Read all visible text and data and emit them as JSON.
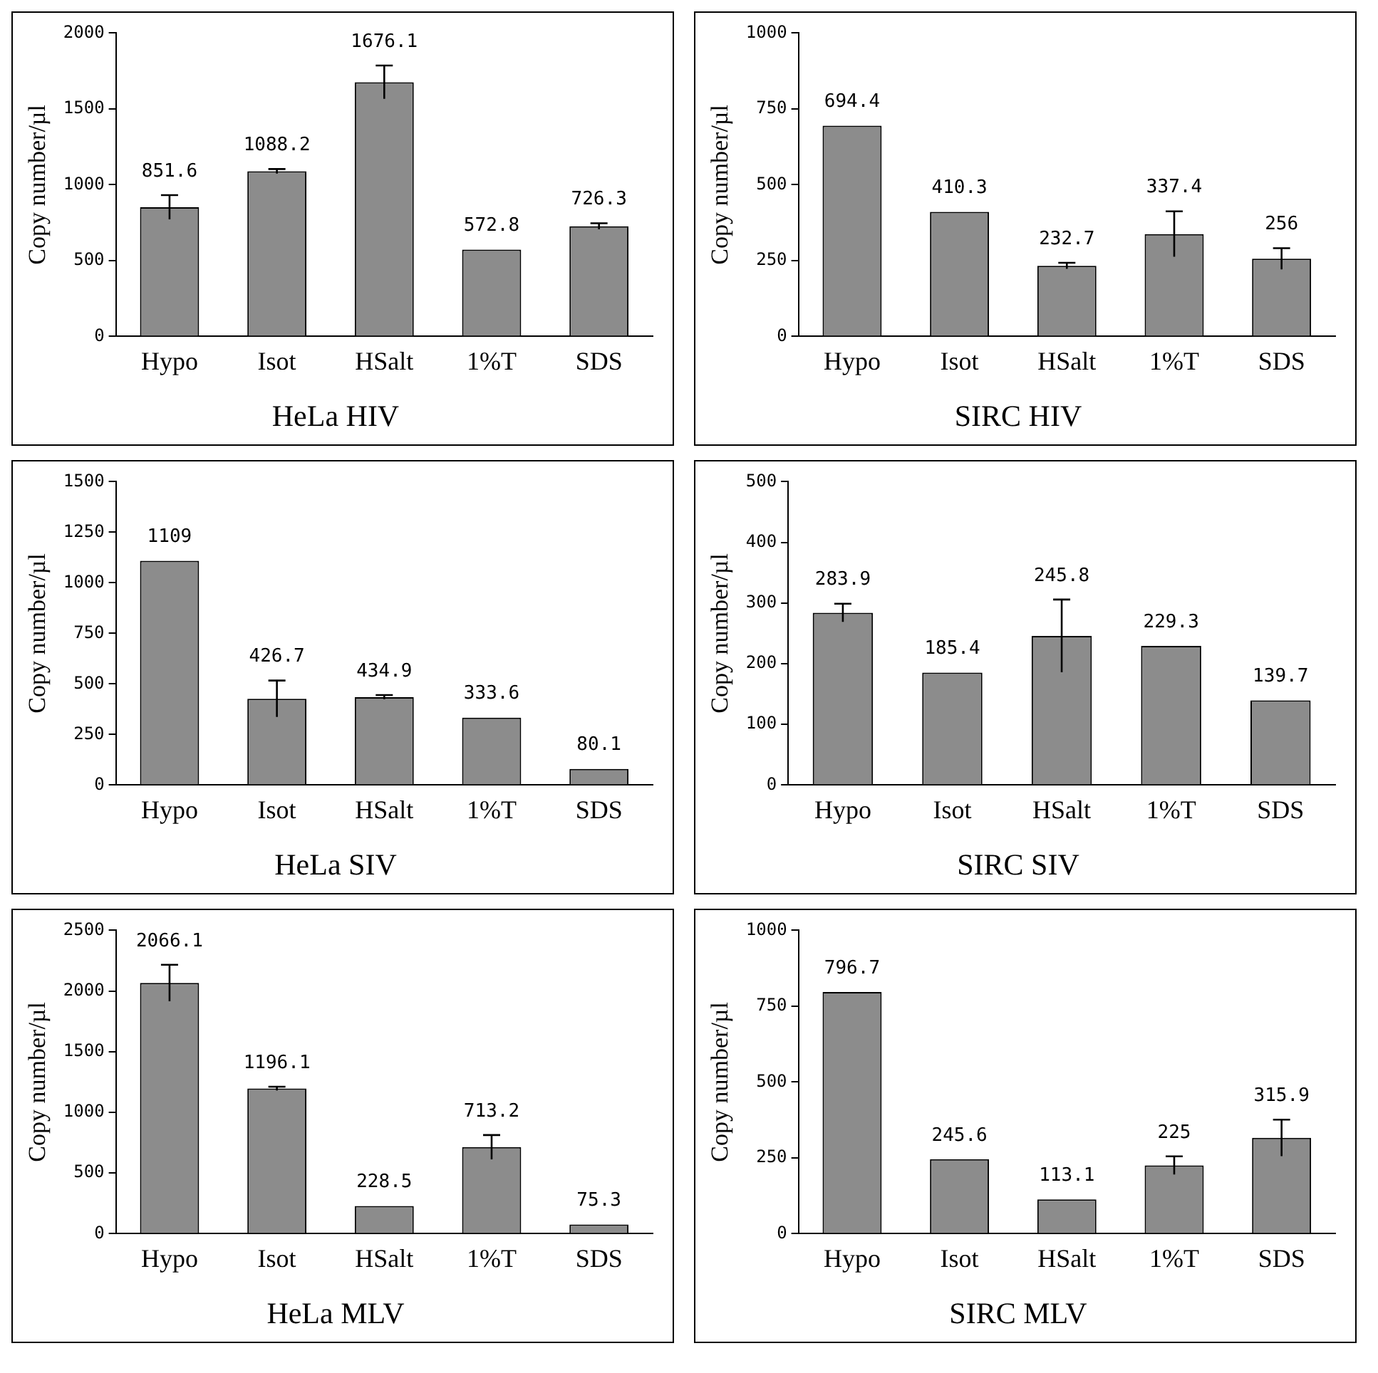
{
  "chart_data": [
    {
      "type": "bar",
      "title": "HeLa HIV",
      "ylabel": "Copy number/µl",
      "categories": [
        "Hypo",
        "Isot",
        "HSalt",
        "1%T",
        "SDS"
      ],
      "values": [
        851.6,
        1088.2,
        1676.1,
        572.8,
        726.3
      ],
      "errors": [
        80,
        15,
        110,
        null,
        20
      ],
      "color": "#8c8c8c",
      "ylim": [
        0,
        2000
      ],
      "yticks": [
        0,
        500,
        1000,
        1500,
        2000
      ],
      "data_labels": true
    },
    {
      "type": "bar",
      "title": "SIRC HIV",
      "ylabel": "Copy number/µl",
      "categories": [
        "Hypo",
        "Isot",
        "HSalt",
        "1%T",
        "SDS"
      ],
      "values": [
        694.4,
        410.3,
        232.7,
        337.4,
        256
      ],
      "errors": [
        null,
        null,
        10,
        75,
        35
      ],
      "color": "#8c8c8c",
      "ylim": [
        0,
        1000
      ],
      "yticks": [
        0,
        250,
        500,
        750,
        1000
      ],
      "data_labels": true
    },
    {
      "type": "bar",
      "title": "HeLa SIV",
      "ylabel": "Copy number/µl",
      "categories": [
        "Hypo",
        "Isot",
        "HSalt",
        "1%T",
        "SDS"
      ],
      "values": [
        1109,
        426.7,
        434.9,
        333.6,
        80.1
      ],
      "errors": [
        null,
        90,
        10,
        null,
        null
      ],
      "color": "#8c8c8c",
      "ylim": [
        0,
        1500
      ],
      "yticks": [
        0,
        250,
        500,
        750,
        1000,
        1250,
        1500
      ],
      "data_labels": true
    },
    {
      "type": "bar",
      "title": "SIRC SIV",
      "ylabel": "Copy number/µl",
      "categories": [
        "Hypo",
        "Isot",
        "HSalt",
        "1%T",
        "SDS"
      ],
      "values": [
        283.9,
        185.4,
        245.8,
        229.3,
        139.7
      ],
      "errors": [
        15,
        null,
        60,
        null,
        null
      ],
      "color": "#8c8c8c",
      "ylim": [
        0,
        500
      ],
      "yticks": [
        0,
        100,
        200,
        300,
        400,
        500
      ],
      "data_labels": true
    },
    {
      "type": "bar",
      "title": "HeLa MLV",
      "ylabel": "Copy number/µl",
      "categories": [
        "Hypo",
        "Isot",
        "HSalt",
        "1%T",
        "SDS"
      ],
      "values": [
        2066.1,
        1196.1,
        228.5,
        713.2,
        75.3
      ],
      "errors": [
        150,
        15,
        null,
        100,
        null
      ],
      "color": "#8c8c8c",
      "ylim": [
        0,
        2500
      ],
      "yticks": [
        0,
        500,
        1000,
        1500,
        2000,
        2500
      ],
      "data_labels": true
    },
    {
      "type": "bar",
      "title": "SIRC MLV",
      "ylabel": "Copy number/µl",
      "categories": [
        "Hypo",
        "Isot",
        "HSalt",
        "1%T",
        "SDS"
      ],
      "values": [
        796.7,
        245.6,
        113.1,
        225,
        315.9
      ],
      "errors": [
        null,
        null,
        null,
        30,
        60
      ],
      "color": "#8c8c8c",
      "ylim": [
        0,
        1000
      ],
      "yticks": [
        0,
        250,
        500,
        750,
        1000
      ],
      "data_labels": true
    }
  ]
}
